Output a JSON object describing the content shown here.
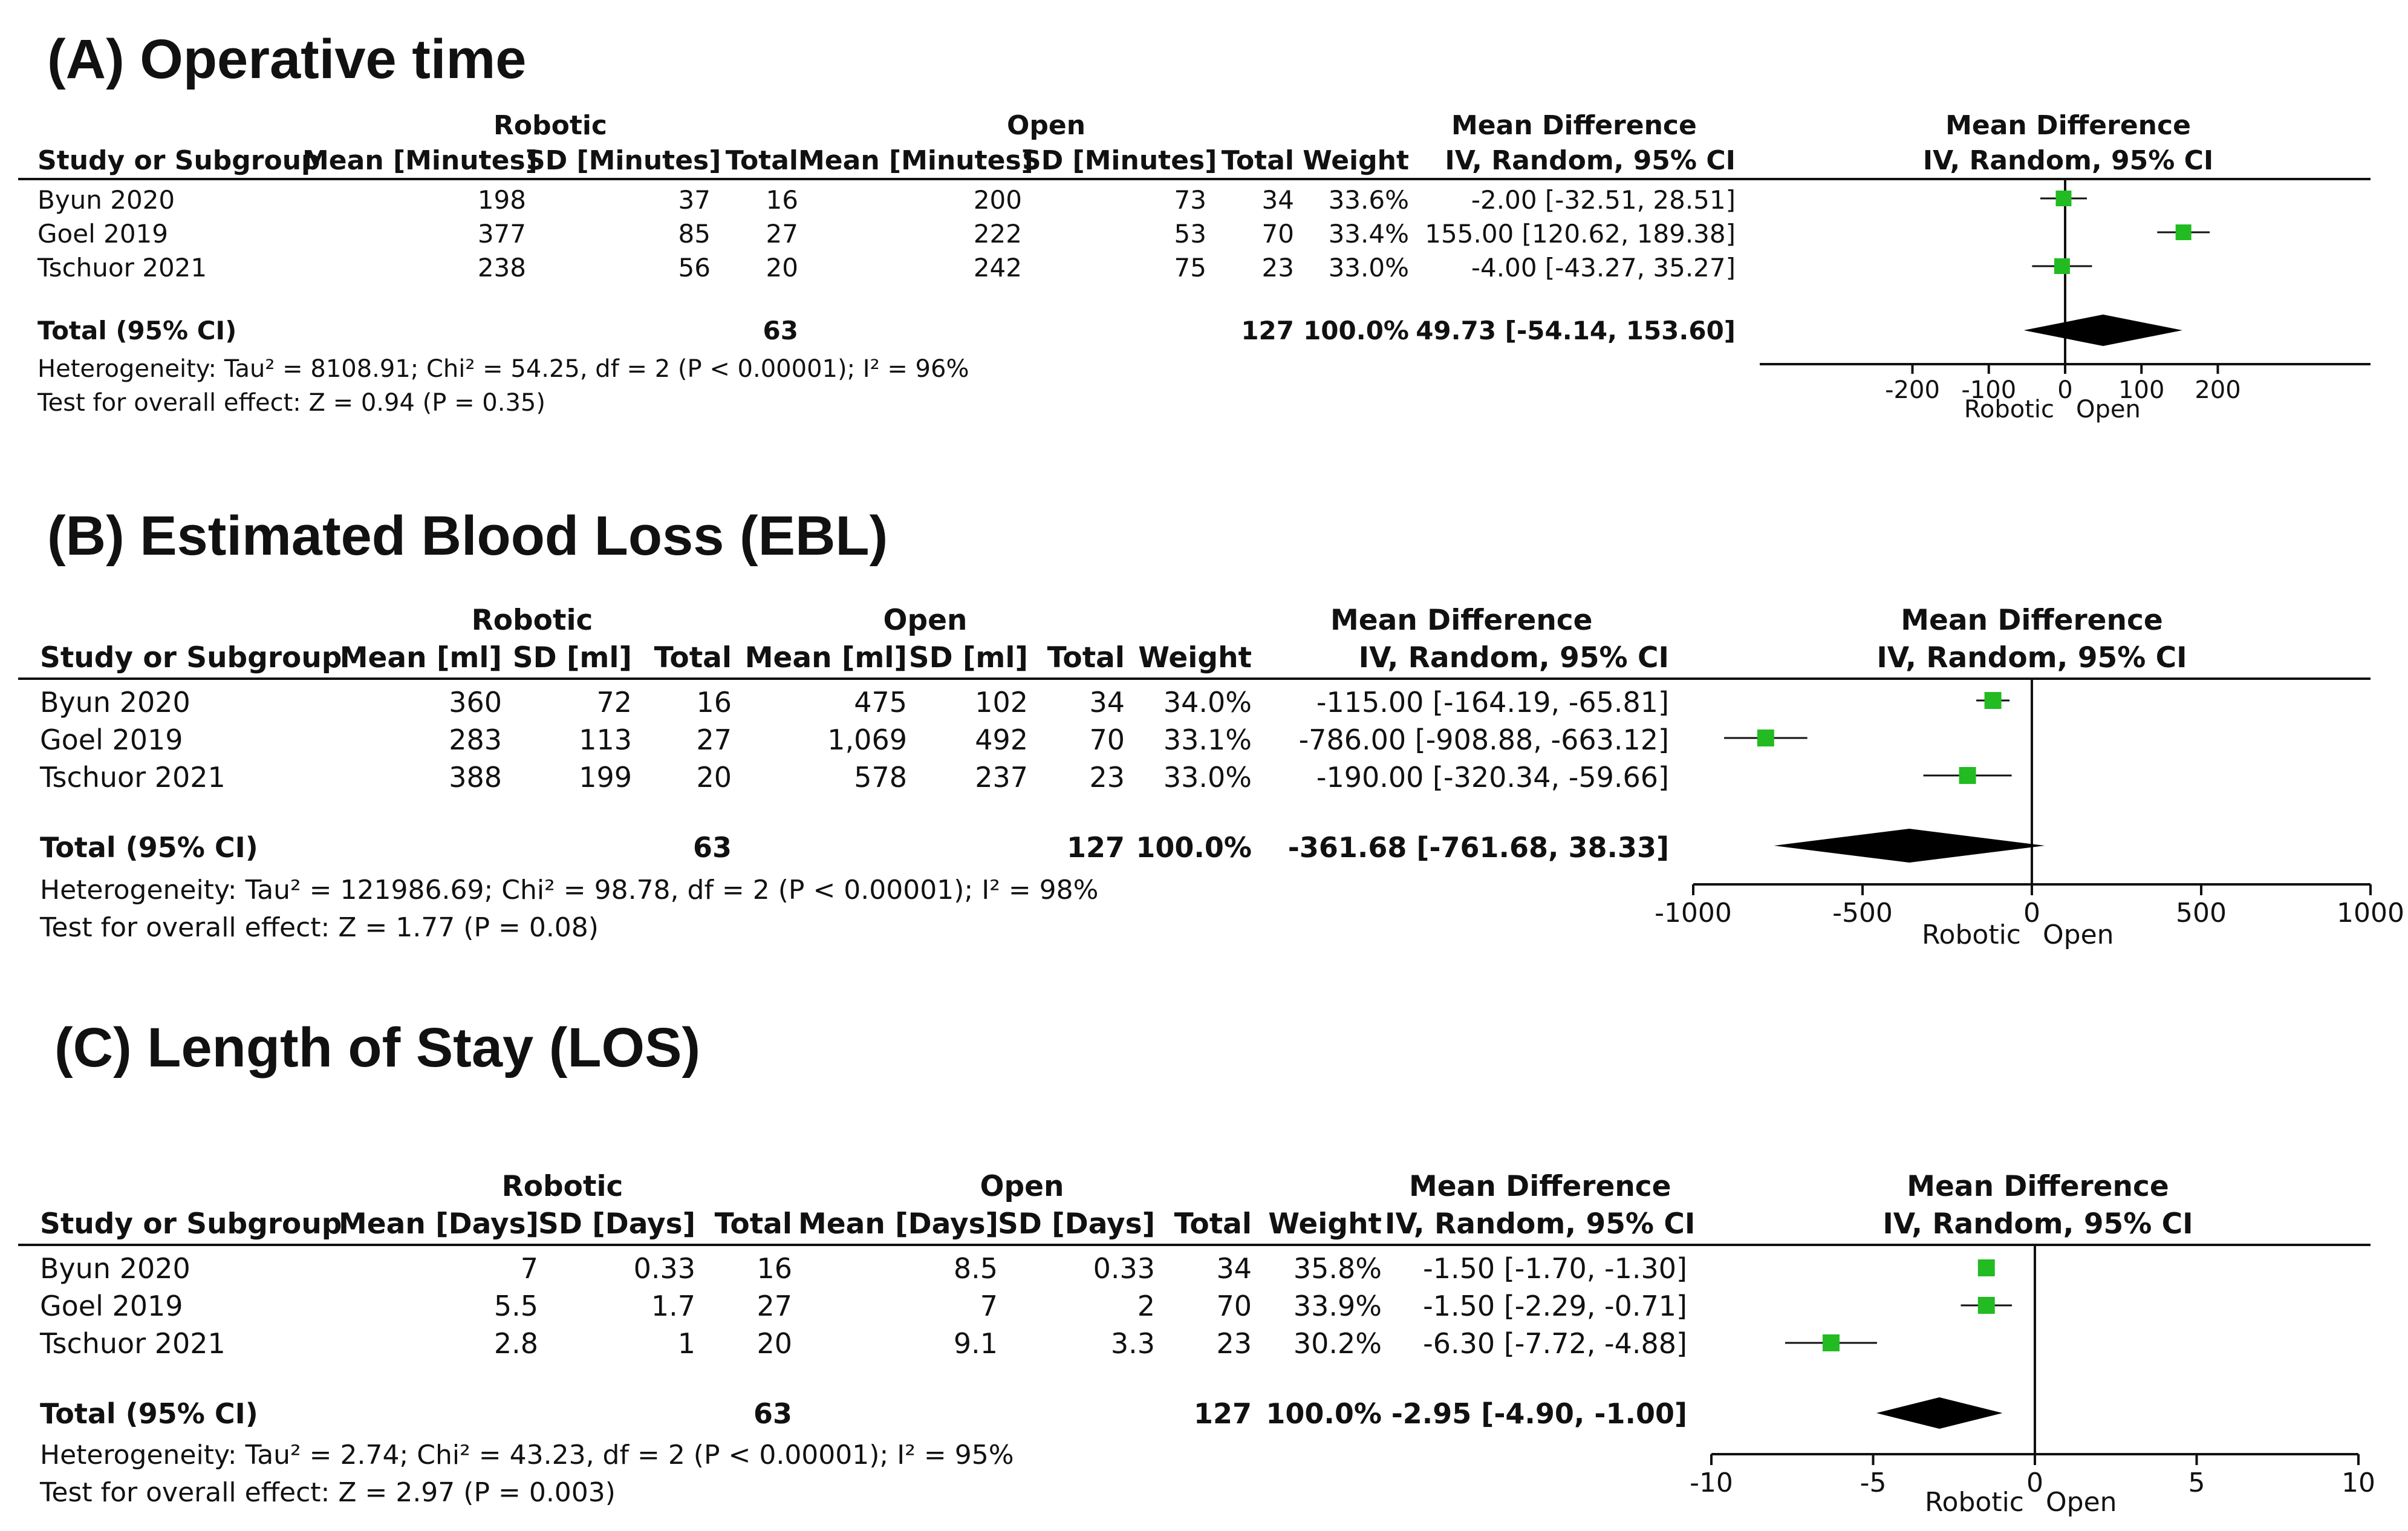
{
  "panels": [
    {
      "title": "(A) Operative time",
      "group_robotic": "Robotic",
      "group_open": "Open",
      "md_header": [
        "Mean Difference",
        "IV, Random, 95% CI"
      ],
      "md_plot_header": [
        "Mean Difference",
        "IV, Random, 95% CI"
      ],
      "columns": [
        "Study or Subgroup",
        "Mean [Minutes]",
        "SD [Minutes]",
        "Total",
        "Mean [Minutes]",
        "SD [Minutes]",
        "Total",
        "Weight"
      ],
      "rows": [
        {
          "study": "Byun 2020",
          "r_mean": "198",
          "r_sd": "37",
          "r_total": "16",
          "o_mean": "200",
          "o_sd": "73",
          "o_total": "34",
          "weight": "33.6%",
          "ci": "-2.00 [-32.51, 28.51]"
        },
        {
          "study": "Goel 2019",
          "r_mean": "377",
          "r_sd": "85",
          "r_total": "27",
          "o_mean": "222",
          "o_sd": "53",
          "o_total": "70",
          "weight": "33.4%",
          "ci": "155.00 [120.62, 189.38]"
        },
        {
          "study": "Tschuor 2021",
          "r_mean": "238",
          "r_sd": "56",
          "r_total": "20",
          "o_mean": "242",
          "o_sd": "75",
          "o_total": "23",
          "weight": "33.0%",
          "ci": "-4.00 [-43.27, 35.27]"
        }
      ],
      "total": {
        "label": "Total (95% CI)",
        "r_total": "63",
        "o_total": "127",
        "weight": "100.0%",
        "ci": "49.73 [-54.14, 153.60]"
      },
      "heterogeneity": "Heterogeneity: Tau² = 8108.91; Chi² = 54.25, df = 2 (P < 0.00001); I² = 96%",
      "overall": "Test for overall effect: Z = 0.94 (P = 0.35)",
      "favours": [
        "Robotic",
        "Open"
      ]
    },
    {
      "title": "(B) Estimated Blood Loss (EBL)",
      "group_robotic": "Robotic",
      "group_open": "Open",
      "md_header": [
        "Mean Difference",
        "IV, Random, 95% CI"
      ],
      "md_plot_header": [
        "Mean Difference",
        "IV, Random, 95% CI"
      ],
      "columns": [
        "Study or Subgroup",
        "Mean [ml]",
        "SD [ml]",
        "Total",
        "Mean [ml]",
        "SD [ml]",
        "Total",
        "Weight"
      ],
      "rows": [
        {
          "study": "Byun 2020",
          "r_mean": "360",
          "r_sd": "72",
          "r_total": "16",
          "o_mean": "475",
          "o_sd": "102",
          "o_total": "34",
          "weight": "34.0%",
          "ci": "-115.00 [-164.19, -65.81]"
        },
        {
          "study": "Goel 2019",
          "r_mean": "283",
          "r_sd": "113",
          "r_total": "27",
          "o_mean": "1,069",
          "o_sd": "492",
          "o_total": "70",
          "weight": "33.1%",
          "ci": "-786.00 [-908.88, -663.12]"
        },
        {
          "study": "Tschuor 2021",
          "r_mean": "388",
          "r_sd": "199",
          "r_total": "20",
          "o_mean": "578",
          "o_sd": "237",
          "o_total": "23",
          "weight": "33.0%",
          "ci": "-190.00 [-320.34, -59.66]"
        }
      ],
      "total": {
        "label": "Total (95% CI)",
        "r_total": "63",
        "o_total": "127",
        "weight": "100.0%",
        "ci": "-361.68 [-761.68, 38.33]"
      },
      "heterogeneity": "Heterogeneity: Tau² = 121986.69; Chi² = 98.78, df = 2 (P < 0.00001); I² = 98%",
      "overall": "Test for overall effect: Z = 1.77 (P = 0.08)",
      "favours": [
        "Robotic",
        "Open"
      ]
    },
    {
      "title": "(C) Length of Stay (LOS)",
      "group_robotic": "Robotic",
      "group_open": "Open",
      "md_header": [
        "Mean Difference",
        "IV, Random, 95% CI"
      ],
      "md_plot_header": [
        "Mean Difference",
        "IV, Random, 95% CI"
      ],
      "columns": [
        "Study or Subgroup",
        "Mean [Days]",
        "SD [Days]",
        "Total",
        "Mean [Days]",
        "SD [Days]",
        "Total",
        "Weight"
      ],
      "rows": [
        {
          "study": "Byun 2020",
          "r_mean": "7",
          "r_sd": "0.33",
          "r_total": "16",
          "o_mean": "8.5",
          "o_sd": "0.33",
          "o_total": "34",
          "weight": "35.8%",
          "ci": "-1.50 [-1.70, -1.30]"
        },
        {
          "study": "Goel 2019",
          "r_mean": "5.5",
          "r_sd": "1.7",
          "r_total": "27",
          "o_mean": "7",
          "o_sd": "2",
          "o_total": "70",
          "weight": "33.9%",
          "ci": "-1.50 [-2.29, -0.71]"
        },
        {
          "study": "Tschuor 2021",
          "r_mean": "2.8",
          "r_sd": "1",
          "r_total": "20",
          "o_mean": "9.1",
          "o_sd": "3.3",
          "o_total": "23",
          "weight": "30.2%",
          "ci": "-6.30 [-7.72, -4.88]"
        }
      ],
      "total": {
        "label": "Total (95% CI)",
        "r_total": "63",
        "o_total": "127",
        "weight": "100.0%",
        "ci": "-2.95 [-4.90, -1.00]"
      },
      "heterogeneity": "Heterogeneity: Tau² = 2.74; Chi² = 43.23, df = 2 (P < 0.00001); I² = 95%",
      "overall": "Test for overall effect: Z = 2.97 (P = 0.003)",
      "favours": [
        "Robotic",
        "Open"
      ]
    }
  ],
  "chart_data": [
    {
      "type": "forest",
      "title": "(A) Operative time",
      "xlim": [
        -400,
        400
      ],
      "xticks": [
        -200,
        -100,
        0,
        100,
        200
      ],
      "xtick_labels": [
        "-200",
        "-100",
        "0",
        "100",
        "200"
      ],
      "favours_left": "Robotic",
      "favours_right": "Open",
      "marker_color": "#22bb22",
      "studies": [
        {
          "name": "Byun 2020",
          "md": -2.0,
          "lo": -32.51,
          "hi": 28.51,
          "weight": 33.6
        },
        {
          "name": "Goel 2019",
          "md": 155.0,
          "lo": 120.62,
          "hi": 189.38,
          "weight": 33.4
        },
        {
          "name": "Tschuor 2021",
          "md": -4.0,
          "lo": -43.27,
          "hi": 35.27,
          "weight": 33.0
        }
      ],
      "pooled": {
        "md": 49.73,
        "lo": -54.14,
        "hi": 153.6
      }
    },
    {
      "type": "forest",
      "title": "(B) Estimated Blood Loss (EBL)",
      "xlim": [
        -1000,
        1000
      ],
      "xticks": [
        -1000,
        -500,
        0,
        500,
        1000
      ],
      "xtick_labels": [
        "-1000",
        "-500",
        "0",
        "500",
        "1000"
      ],
      "favours_left": "Robotic",
      "favours_right": "Open",
      "marker_color": "#22bb22",
      "studies": [
        {
          "name": "Byun 2020",
          "md": -115.0,
          "lo": -164.19,
          "hi": -65.81,
          "weight": 34.0
        },
        {
          "name": "Goel 2019",
          "md": -786.0,
          "lo": -908.88,
          "hi": -663.12,
          "weight": 33.1
        },
        {
          "name": "Tschuor 2021",
          "md": -190.0,
          "lo": -320.34,
          "hi": -59.66,
          "weight": 33.0
        }
      ],
      "pooled": {
        "md": -361.68,
        "lo": -761.68,
        "hi": 38.33
      }
    },
    {
      "type": "forest",
      "title": "(C) Length of Stay (LOS)",
      "xlim": [
        -10,
        10
      ],
      "xticks": [
        -10,
        -5,
        0,
        5,
        10
      ],
      "xtick_labels": [
        "-10",
        "-5",
        "0",
        "5",
        "10"
      ],
      "favours_left": "Robotic",
      "favours_right": "Open",
      "marker_color": "#22bb22",
      "studies": [
        {
          "name": "Byun 2020",
          "md": -1.5,
          "lo": -1.7,
          "hi": -1.3,
          "weight": 35.8
        },
        {
          "name": "Goel 2019",
          "md": -1.5,
          "lo": -2.29,
          "hi": -0.71,
          "weight": 33.9
        },
        {
          "name": "Tschuor 2021",
          "md": -6.3,
          "lo": -7.72,
          "hi": -4.88,
          "weight": 30.2
        }
      ],
      "pooled": {
        "md": -2.95,
        "lo": -4.9,
        "hi": -1.0
      }
    }
  ]
}
